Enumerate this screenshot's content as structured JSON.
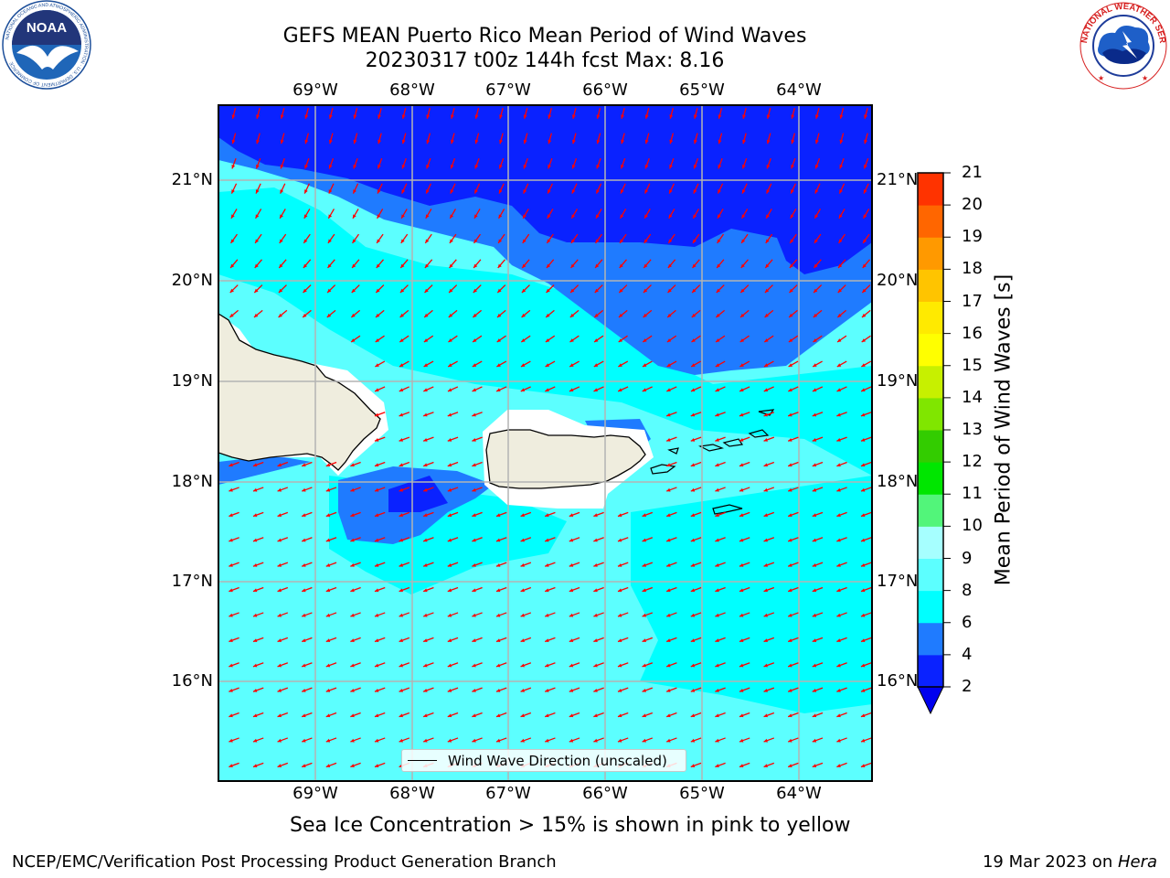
{
  "title_line1": "GEFS MEAN Puerto Rico Mean Period of Wind Waves",
  "title_line2": "20230317 t00z 144h fcst   Max: 8.16",
  "logos": {
    "left": {
      "text": "NOAA",
      "icon": "noaa-logo-icon",
      "ring_text": "NATIONAL OCEANIC AND ATMOSPHERIC ADMINISTRATION · U.S. DEPARTMENT OF COMMERCE"
    },
    "right": {
      "icon": "nws-logo-icon",
      "ring_text": "NATIONAL WEATHER SERVICE"
    }
  },
  "map": {
    "lon_labels": [
      "69°W",
      "68°W",
      "67°W",
      "66°W",
      "65°W",
      "64°W"
    ],
    "lat_labels": [
      "21°N",
      "20°N",
      "19°N",
      "18°N",
      "17°N",
      "16°N"
    ],
    "legend_label": "Wind Wave Direction (unscaled)",
    "arrow_color": "#ff0000",
    "coast_color": "#000000",
    "land_color": "#efedde"
  },
  "colorbar": {
    "label": "Mean Period of Wind Waves [s]",
    "ticks": [
      "2",
      "4",
      "6",
      "8",
      "9",
      "10",
      "11",
      "12",
      "13",
      "14",
      "15",
      "16",
      "17",
      "18",
      "19",
      "20",
      "21"
    ],
    "colors": [
      "#0a22ff",
      "#1f7bff",
      "#00ffff",
      "#5cffff",
      "#a6ffff",
      "#52f57a",
      "#00e600",
      "#33cc00",
      "#80e600",
      "#c7f000",
      "#ffff00",
      "#ffea00",
      "#ffc400",
      "#ff9900",
      "#ff6600",
      "#ff3300",
      "#ff0000"
    ],
    "under_color": "#0000ee"
  },
  "note": "Sea Ice Concentration > 15% is shown in pink to yellow",
  "footer_left": "NCEP/EMC/Verification Post Processing Product Generation Branch",
  "footer_right_prefix": "19 Mar 2023 on ",
  "footer_right_host": "Hera"
}
